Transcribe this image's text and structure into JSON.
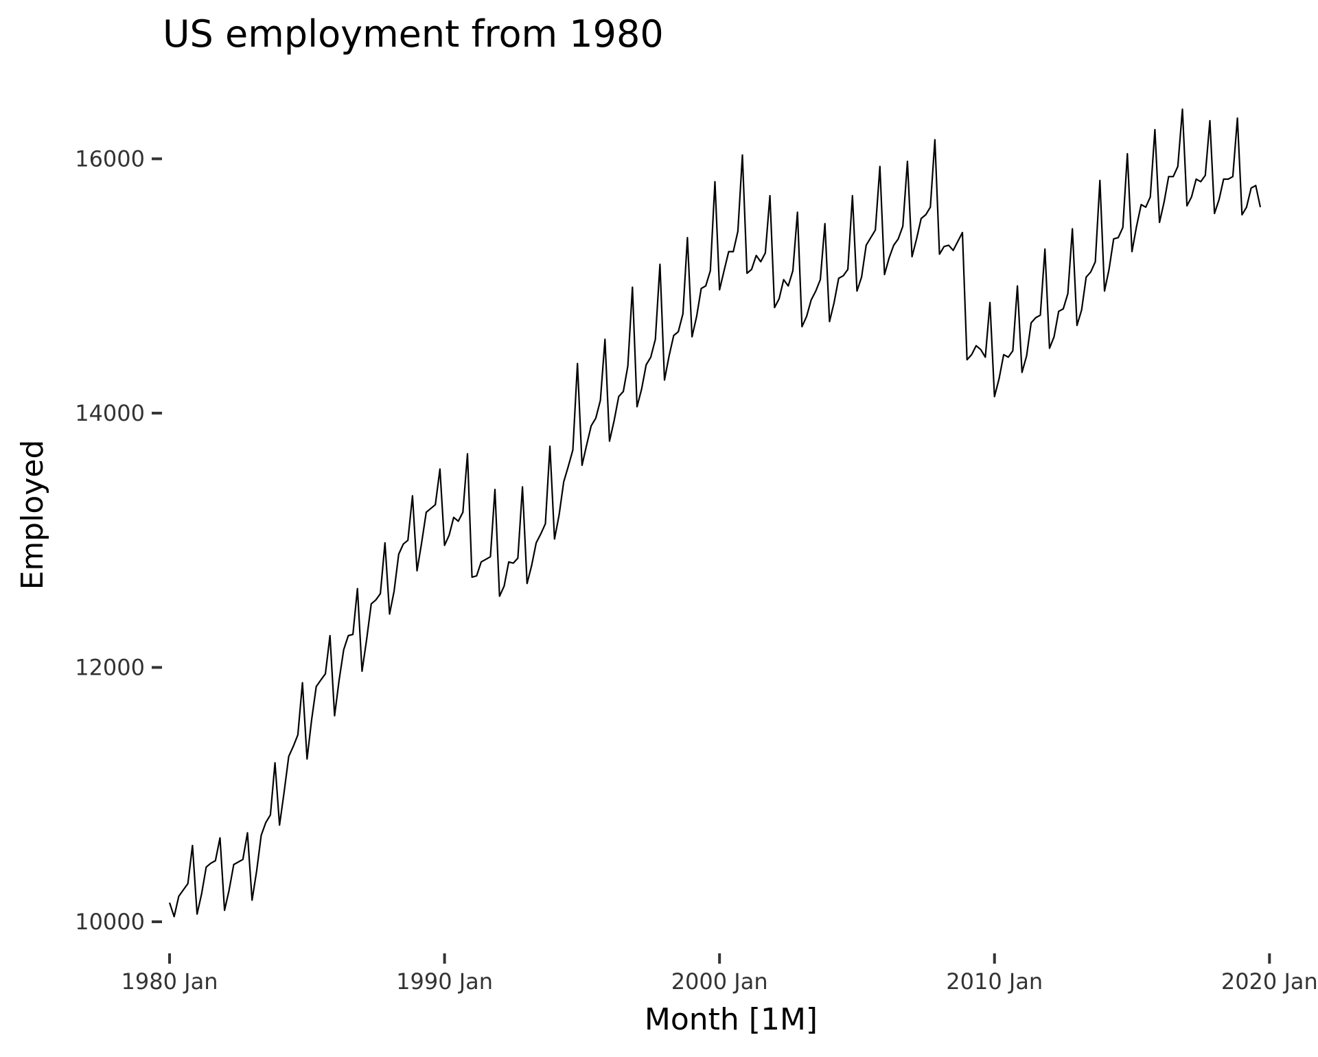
{
  "chart_data": {
    "type": "line",
    "title": "US employment from 1980",
    "xlabel": "Month [1M]",
    "ylabel": "Employed",
    "x_tick_labels": [
      "1980 Jan",
      "1990 Jan",
      "2000 Jan",
      "2010 Jan",
      "2020 Jan"
    ],
    "x_tick_years": [
      1980,
      1990,
      2000,
      2010,
      2020
    ],
    "y_tick_labels": [
      "10000",
      "12000",
      "14000",
      "16000"
    ],
    "y_tick_values": [
      10000,
      12000,
      14000,
      16000
    ],
    "xlim": [
      "1979-10",
      "2020-06"
    ],
    "ylim": [
      9800,
      16450
    ],
    "grid": false,
    "legend": "none",
    "line_color": "#000000",
    "series": [
      {
        "x": [
          "1980-01",
          "1980-03",
          "1980-05",
          "1980-07",
          "1980-09",
          "1980-11",
          "1981-01",
          "1981-03",
          "1981-05",
          "1981-07",
          "1981-09",
          "1981-11",
          "1982-01",
          "1982-03",
          "1982-05",
          "1982-07",
          "1982-09",
          "1982-11",
          "1983-01",
          "1983-03",
          "1983-05",
          "1983-07",
          "1983-09",
          "1983-11",
          "1984-01",
          "1984-03",
          "1984-05",
          "1984-07",
          "1984-09",
          "1984-11",
          "1985-01",
          "1985-03",
          "1985-05",
          "1985-07",
          "1985-09",
          "1985-11",
          "1986-01",
          "1986-03",
          "1986-05",
          "1986-07",
          "1986-09",
          "1986-11",
          "1987-01",
          "1987-03",
          "1987-05",
          "1987-07",
          "1987-09",
          "1987-11",
          "1988-01",
          "1988-03",
          "1988-05",
          "1988-07",
          "1988-09",
          "1988-11",
          "1989-01",
          "1989-03",
          "1989-05",
          "1989-07",
          "1989-09",
          "1989-11",
          "1990-01",
          "1990-03",
          "1990-05",
          "1990-07",
          "1990-09",
          "1990-11",
          "1991-01",
          "1991-03",
          "1991-05",
          "1991-07",
          "1991-09",
          "1991-11",
          "1992-01",
          "1992-03",
          "1992-05",
          "1992-07",
          "1992-09",
          "1992-11",
          "1993-01",
          "1993-03",
          "1993-05",
          "1993-07",
          "1993-09",
          "1993-11",
          "1994-01",
          "1994-03",
          "1994-05",
          "1994-07",
          "1994-09",
          "1994-11",
          "1995-01",
          "1995-03",
          "1995-05",
          "1995-07",
          "1995-09",
          "1995-11",
          "1996-01",
          "1996-03",
          "1996-05",
          "1996-07",
          "1996-09",
          "1996-11",
          "1997-01",
          "1997-03",
          "1997-05",
          "1997-07",
          "1997-09",
          "1997-11",
          "1998-01",
          "1998-03",
          "1998-05",
          "1998-07",
          "1998-09",
          "1998-11",
          "1999-01",
          "1999-03",
          "1999-05",
          "1999-07",
          "1999-09",
          "1999-11",
          "2000-01",
          "2000-03",
          "2000-05",
          "2000-07",
          "2000-09",
          "2000-11",
          "2001-01",
          "2001-03",
          "2001-05",
          "2001-07",
          "2001-09",
          "2001-11",
          "2002-01",
          "2002-03",
          "2002-05",
          "2002-07",
          "2002-09",
          "2002-11",
          "2003-01",
          "2003-03",
          "2003-05",
          "2003-07",
          "2003-09",
          "2003-11",
          "2004-01",
          "2004-03",
          "2004-05",
          "2004-07",
          "2004-09",
          "2004-11",
          "2005-01",
          "2005-03",
          "2005-05",
          "2005-07",
          "2005-09",
          "2005-11",
          "2006-01",
          "2006-03",
          "2006-05",
          "2006-07",
          "2006-09",
          "2006-11",
          "2007-01",
          "2007-03",
          "2007-05",
          "2007-07",
          "2007-09",
          "2007-11",
          "2008-01",
          "2008-03",
          "2008-05",
          "2008-07",
          "2008-09",
          "2008-11",
          "2009-01",
          "2009-03",
          "2009-05",
          "2009-07",
          "2009-09",
          "2009-11",
          "2010-01",
          "2010-03",
          "2010-05",
          "2010-07",
          "2010-09",
          "2010-11",
          "2011-01",
          "2011-03",
          "2011-05",
          "2011-07",
          "2011-09",
          "2011-11",
          "2012-01",
          "2012-03",
          "2012-05",
          "2012-07",
          "2012-09",
          "2012-11",
          "2013-01",
          "2013-03",
          "2013-05",
          "2013-07",
          "2013-09",
          "2013-11",
          "2014-01",
          "2014-03",
          "2014-05",
          "2014-07",
          "2014-09",
          "2014-11",
          "2015-01",
          "2015-03",
          "2015-05",
          "2015-07",
          "2015-09",
          "2015-11",
          "2016-01",
          "2016-03",
          "2016-05",
          "2016-07",
          "2016-09",
          "2016-11",
          "2017-01",
          "2017-03",
          "2017-05",
          "2017-07",
          "2017-09",
          "2017-11",
          "2018-01",
          "2018-03",
          "2018-05",
          "2018-07",
          "2018-09",
          "2018-11",
          "2019-01",
          "2019-03",
          "2019-05",
          "2019-07",
          "2019-09"
        ],
        "values": [
          10150,
          10040,
          10200,
          10250,
          10300,
          10600,
          10060,
          10220,
          10430,
          10460,
          10480,
          10660,
          10090,
          10250,
          10450,
          10470,
          10490,
          10700,
          10170,
          10400,
          10680,
          10780,
          10840,
          11250,
          10760,
          11020,
          11300,
          11380,
          11470,
          11880,
          11280,
          11590,
          11850,
          11900,
          11950,
          12250,
          11620,
          11900,
          12140,
          12250,
          12260,
          12620,
          11970,
          12220,
          12500,
          12530,
          12580,
          12980,
          12420,
          12600,
          12890,
          12970,
          13000,
          13350,
          12760,
          12980,
          13220,
          13250,
          13280,
          13560,
          12960,
          13040,
          13180,
          13150,
          13220,
          13680,
          12710,
          12720,
          12830,
          12850,
          12870,
          13400,
          12560,
          12640,
          12830,
          12820,
          12860,
          13420,
          12660,
          12800,
          12980,
          13050,
          13130,
          13740,
          13010,
          13200,
          13460,
          13580,
          13710,
          14390,
          13590,
          13750,
          13900,
          13960,
          14100,
          14580,
          13780,
          13940,
          14130,
          14170,
          14370,
          14990,
          14050,
          14190,
          14380,
          14440,
          14580,
          15170,
          14260,
          14450,
          14610,
          14640,
          14780,
          15380,
          14600,
          14760,
          14980,
          15000,
          15120,
          15820,
          14970,
          15120,
          15270,
          15270,
          15430,
          16030,
          15100,
          15130,
          15240,
          15190,
          15260,
          15710,
          14830,
          14900,
          15050,
          15000,
          15120,
          15580,
          14680,
          14760,
          14890,
          14960,
          15050,
          15490,
          14720,
          14870,
          15060,
          15080,
          15130,
          15710,
          14960,
          15070,
          15320,
          15380,
          15440,
          15940,
          15090,
          15220,
          15320,
          15370,
          15470,
          15980,
          15230,
          15370,
          15530,
          15560,
          15620,
          16150,
          15250,
          15310,
          15320,
          15280,
          15350,
          15420,
          14420,
          14460,
          14530,
          14500,
          14440,
          14870,
          14130,
          14270,
          14460,
          14440,
          14490,
          15000,
          14320,
          14450,
          14710,
          14750,
          14770,
          15290,
          14510,
          14600,
          14800,
          14820,
          14940,
          15450,
          14690,
          14810,
          15070,
          15110,
          15190,
          15830,
          14960,
          15130,
          15370,
          15380,
          15460,
          16040,
          15270,
          15470,
          15640,
          15620,
          15700,
          16230,
          15500,
          15660,
          15860,
          15860,
          15940,
          16390,
          15630,
          15700,
          15840,
          15820,
          15870,
          16300,
          15570,
          15680,
          15840,
          15840,
          15860,
          16320,
          15560,
          15620,
          15770,
          15790,
          15620
        ]
      }
    ]
  }
}
